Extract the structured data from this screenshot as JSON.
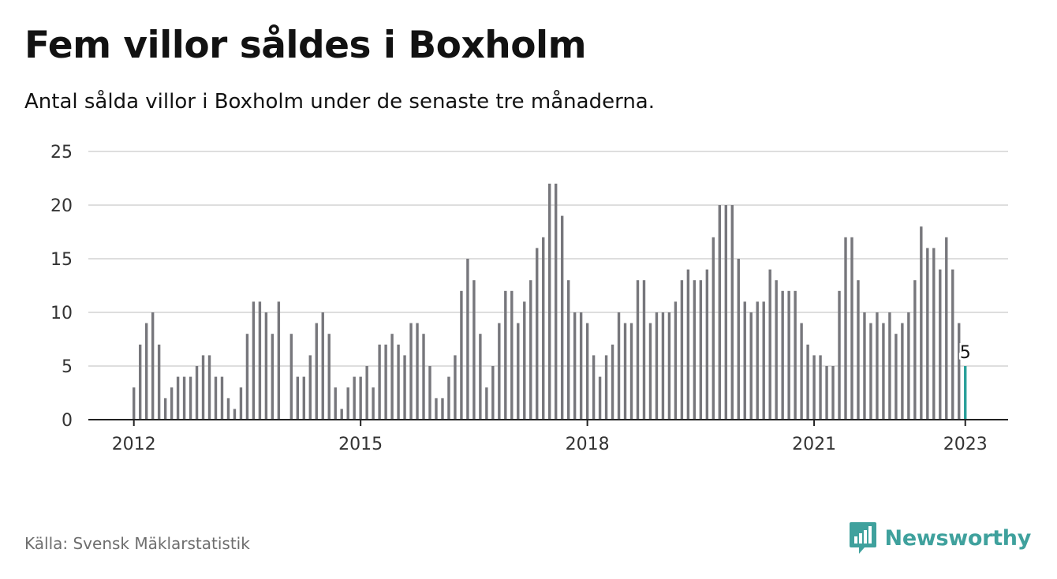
{
  "title": "Fem villor såldes i Boxholm",
  "subtitle": "Antal sålda villor i Boxholm under de senaste tre månaderna.",
  "source": "Källa: Svensk Mäklarstatistik",
  "brand": "Newsworthy",
  "colors": {
    "bar": "#77777c",
    "highlight": "#2aa09a",
    "grid": "#dedede",
    "axis": "#222222",
    "brand": "#3fa19d"
  },
  "chart_data": {
    "type": "bar",
    "ylim": [
      0,
      25
    ],
    "yticks": [
      0,
      5,
      10,
      15,
      20,
      25
    ],
    "x_tick_labels": [
      {
        "label": "2012",
        "index": 0
      },
      {
        "label": "2015",
        "index": 36
      },
      {
        "label": "2018",
        "index": 72
      },
      {
        "label": "2021",
        "index": 108
      },
      {
        "label": "2023",
        "index": 132
      }
    ],
    "grid": true,
    "start": "2012-01",
    "end": "2023-01",
    "values": [
      3,
      7,
      9,
      10,
      7,
      2,
      3,
      4,
      4,
      4,
      5,
      6,
      6,
      4,
      4,
      2,
      1,
      3,
      8,
      11,
      11,
      10,
      8,
      11,
      0,
      8,
      4,
      4,
      6,
      9,
      10,
      8,
      3,
      1,
      3,
      4,
      4,
      5,
      3,
      7,
      7,
      8,
      7,
      6,
      9,
      9,
      8,
      5,
      2,
      2,
      4,
      6,
      12,
      15,
      13,
      8,
      3,
      5,
      9,
      12,
      12,
      9,
      11,
      13,
      16,
      17,
      22,
      22,
      19,
      13,
      10,
      10,
      9,
      6,
      4,
      6,
      7,
      10,
      9,
      9,
      13,
      13,
      9,
      10,
      10,
      10,
      11,
      13,
      14,
      13,
      13,
      14,
      17,
      20,
      20,
      20,
      15,
      11,
      10,
      11,
      11,
      14,
      13,
      12,
      12,
      12,
      9,
      7,
      6,
      6,
      5,
      5,
      12,
      17,
      17,
      13,
      10,
      9,
      10,
      9,
      10,
      8,
      9,
      10,
      13,
      18,
      16,
      16,
      14,
      17,
      14,
      9,
      5
    ],
    "highlight": {
      "label": "5",
      "value": 5,
      "index": 132
    }
  }
}
